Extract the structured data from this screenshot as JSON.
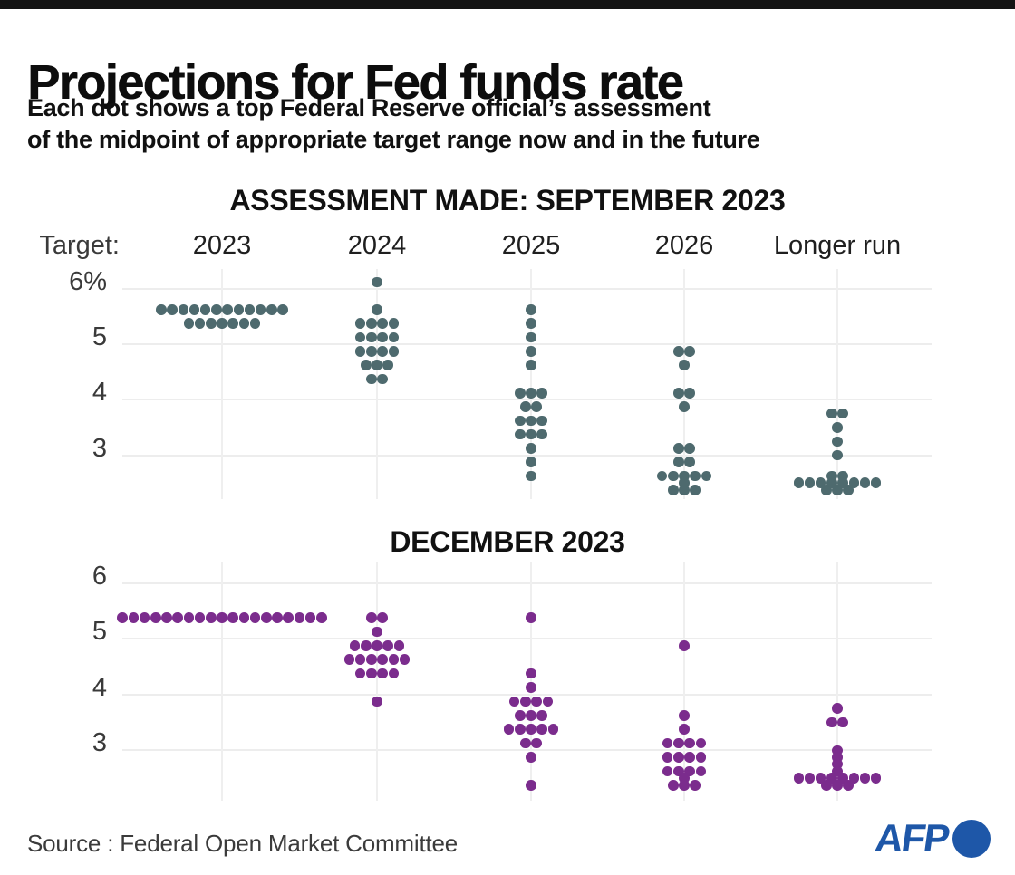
{
  "page": {
    "title": "Projections for Fed funds rate",
    "subtitle_line1": "Each dot shows a top Federal Reserve official’s assessment",
    "subtitle_line2": "of the midpoint of appropriate target range now and in the future",
    "source": "Source : Federal Open Market Committee",
    "top_bar_color": "#141414",
    "afp": {
      "text": "AFP",
      "color": "#1e57a8"
    }
  },
  "chart_data": [
    {
      "type": "scatter",
      "variant": "dot-plot",
      "title": "ASSESSMENT MADE: SEPTEMBER 2023",
      "target_label": "Target:",
      "dot_color": "#4e6a6e",
      "grid": true,
      "legend_position": "none",
      "categories": [
        "2023",
        "2024",
        "2025",
        "2026",
        "Longer run"
      ],
      "y_ticks": [
        {
          "label": "6%",
          "value": 6
        },
        {
          "label": "5",
          "value": 5
        },
        {
          "label": "4",
          "value": 4
        },
        {
          "label": "3",
          "value": 3
        }
      ],
      "ylim": [
        2.2,
        6.4
      ],
      "series": [
        {
          "category": "2023",
          "points": [
            {
              "value": 5.625,
              "count": 12
            },
            {
              "value": 5.375,
              "count": 7
            }
          ]
        },
        {
          "category": "2024",
          "points": [
            {
              "value": 6.125,
              "count": 1
            },
            {
              "value": 5.625,
              "count": 1
            },
            {
              "value": 5.375,
              "count": 4
            },
            {
              "value": 5.125,
              "count": 4
            },
            {
              "value": 4.875,
              "count": 4
            },
            {
              "value": 4.625,
              "count": 3
            },
            {
              "value": 4.375,
              "count": 2
            }
          ]
        },
        {
          "category": "2025",
          "points": [
            {
              "value": 5.625,
              "count": 1
            },
            {
              "value": 5.375,
              "count": 1
            },
            {
              "value": 5.125,
              "count": 1
            },
            {
              "value": 4.875,
              "count": 1
            },
            {
              "value": 4.625,
              "count": 1
            },
            {
              "value": 4.125,
              "count": 3
            },
            {
              "value": 3.875,
              "count": 2
            },
            {
              "value": 3.625,
              "count": 3
            },
            {
              "value": 3.375,
              "count": 3
            },
            {
              "value": 3.125,
              "count": 1
            },
            {
              "value": 2.875,
              "count": 1
            },
            {
              "value": 2.625,
              "count": 1
            }
          ]
        },
        {
          "category": "2026",
          "points": [
            {
              "value": 4.875,
              "count": 2
            },
            {
              "value": 4.625,
              "count": 1
            },
            {
              "value": 4.125,
              "count": 2
            },
            {
              "value": 3.875,
              "count": 1
            },
            {
              "value": 3.125,
              "count": 2
            },
            {
              "value": 2.875,
              "count": 2
            },
            {
              "value": 2.625,
              "count": 5
            },
            {
              "value": 2.5,
              "count": 1
            },
            {
              "value": 2.375,
              "count": 3
            }
          ]
        },
        {
          "category": "Longer run",
          "points": [
            {
              "value": 3.75,
              "count": 2
            },
            {
              "value": 3.5,
              "count": 1
            },
            {
              "value": 3.25,
              "count": 1
            },
            {
              "value": 3.0,
              "count": 1
            },
            {
              "value": 2.625,
              "count": 2
            },
            {
              "value": 2.5,
              "count": 8
            },
            {
              "value": 2.375,
              "count": 3
            }
          ]
        }
      ]
    },
    {
      "type": "scatter",
      "variant": "dot-plot",
      "title": "DECEMBER 2023",
      "dot_color": "#7b2c8d",
      "grid": true,
      "legend_position": "none",
      "categories": [
        "2023",
        "2024",
        "2025",
        "2026",
        "Longer run"
      ],
      "y_ticks": [
        {
          "label": "6",
          "value": 6
        },
        {
          "label": "5",
          "value": 5
        },
        {
          "label": "4",
          "value": 4
        },
        {
          "label": "3",
          "value": 3
        }
      ],
      "ylim": [
        2.2,
        6.4
      ],
      "series": [
        {
          "category": "2023",
          "points": [
            {
              "value": 5.375,
              "count": 19
            }
          ]
        },
        {
          "category": "2024",
          "points": [
            {
              "value": 5.375,
              "count": 2
            },
            {
              "value": 5.125,
              "count": 1
            },
            {
              "value": 4.875,
              "count": 5
            },
            {
              "value": 4.625,
              "count": 6
            },
            {
              "value": 4.375,
              "count": 4
            },
            {
              "value": 3.875,
              "count": 1
            }
          ]
        },
        {
          "category": "2025",
          "points": [
            {
              "value": 5.375,
              "count": 1
            },
            {
              "value": 4.375,
              "count": 1
            },
            {
              "value": 4.125,
              "count": 1
            },
            {
              "value": 3.875,
              "count": 4
            },
            {
              "value": 3.625,
              "count": 3
            },
            {
              "value": 3.375,
              "count": 5
            },
            {
              "value": 3.125,
              "count": 2
            },
            {
              "value": 2.875,
              "count": 1
            },
            {
              "value": 2.375,
              "count": 1
            }
          ]
        },
        {
          "category": "2026",
          "points": [
            {
              "value": 4.875,
              "count": 1
            },
            {
              "value": 3.625,
              "count": 1
            },
            {
              "value": 3.375,
              "count": 1
            },
            {
              "value": 3.125,
              "count": 4
            },
            {
              "value": 2.875,
              "count": 4
            },
            {
              "value": 2.625,
              "count": 4
            },
            {
              "value": 2.5,
              "count": 1
            },
            {
              "value": 2.375,
              "count": 3
            }
          ]
        },
        {
          "category": "Longer run",
          "points": [
            {
              "value": 3.75,
              "count": 1
            },
            {
              "value": 3.5,
              "count": 2
            },
            {
              "value": 3.0,
              "count": 1
            },
            {
              "value": 2.875,
              "count": 1
            },
            {
              "value": 2.75,
              "count": 1
            },
            {
              "value": 2.625,
              "count": 1
            },
            {
              "value": 2.5,
              "count": 8
            },
            {
              "value": 2.375,
              "count": 3
            }
          ]
        }
      ]
    }
  ]
}
